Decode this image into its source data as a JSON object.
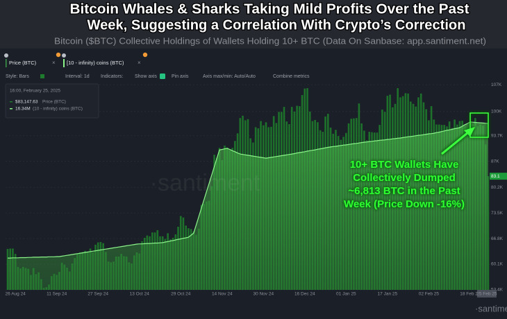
{
  "chart_data": {
    "type": "bar",
    "title": [
      "Bitcoin Whales & Sharks Taking Mild Profits Over the Past",
      "Week, Suggesting a Correlation With Crypto’s Correction"
    ],
    "subtitle": "Bitcoin ($BTC) Collective Holdings of Wallets Holding 10+ BTC (Data On Sanbase: app.santiment.net)",
    "toolbar": [
      "Style: Bars",
      "Interval: 1d",
      "Indicators:",
      "Show axis",
      "Pin axis",
      "Axis max/min: Auto/Auto",
      "Combine metrics"
    ],
    "tooltip": {
      "date": "16:00, February 25, 2025",
      "rows": [
        {
          "value": "$83,147.63",
          "name": "Price (BTC)"
        },
        {
          "value": "16.34M",
          "name": "(10 - infinity) coins (BTC)"
        }
      ]
    },
    "annotation": [
      "10+ BTC Wallets Have",
      "Collectively Dumped",
      "~6,813 BTC in the Past",
      "Week (Price Down -16%)"
    ],
    "watermark": "·santiment",
    "categories": [
      null,
      null,
      null,
      "26 Aug 24",
      null,
      null,
      null,
      null,
      null,
      null,
      null,
      null,
      null,
      null,
      null,
      null,
      null,
      null,
      null,
      "11 Sep 24",
      null,
      null,
      null,
      null,
      null,
      null,
      null,
      null,
      null,
      null,
      null,
      null,
      null,
      null,
      null,
      "27 Sep 24",
      null,
      null,
      null,
      null,
      null,
      null,
      null,
      null,
      null,
      null,
      null,
      null,
      null,
      null,
      null,
      "13 Oct 24",
      null,
      null,
      null,
      null,
      null,
      null,
      null,
      null,
      null,
      null,
      null,
      null,
      null,
      null,
      null,
      "29 Oct 24",
      null,
      null,
      null,
      null,
      null,
      null,
      null,
      null,
      null,
      null,
      null,
      null,
      null,
      null,
      null,
      "14 Nov 24",
      null,
      null,
      null,
      null,
      null,
      null,
      null,
      null,
      null,
      null,
      null,
      null,
      null,
      null,
      null,
      "30 Nov 24",
      null,
      null,
      null,
      null,
      null,
      null,
      null,
      null,
      null,
      null,
      null,
      null,
      null,
      null,
      null,
      "16 Dec 24",
      null,
      null,
      null,
      null,
      null,
      null,
      null,
      null,
      null,
      null,
      null,
      null,
      null,
      null,
      null,
      "01 Jan 25",
      null,
      null,
      null,
      null,
      null,
      null,
      null,
      null,
      null,
      null,
      null,
      null,
      null,
      null,
      null,
      "17 Jan 25",
      null,
      null,
      null,
      null,
      null,
      null,
      null,
      null,
      null,
      null,
      null,
      null,
      null,
      null,
      null,
      "02 Feb 25",
      null,
      null,
      null,
      null,
      null,
      null,
      null,
      null,
      null,
      null,
      null,
      null,
      null,
      null,
      null,
      "18 Feb 25",
      null,
      null,
      null,
      null,
      null,
      null,
      "25 Feb 25"
    ],
    "series": [
      {
        "name": "Price (BTC)",
        "color": "#1e7a2c",
        "values": [
          64.1,
          64.2,
          64.2,
          62.8,
          59.4,
          59.0,
          59.4,
          59.1,
          58.9,
          57.3,
          59.1,
          57.5,
          58.0,
          56.2,
          53.9,
          54.1,
          54.8,
          57.0,
          57.6,
          57.3,
          58.1,
          60.5,
          60.0,
          59.2,
          58.2,
          60.3,
          61.7,
          62.9,
          63.2,
          63.3,
          63.6,
          63.3,
          64.2,
          63.2,
          65.2,
          65.8,
          65.9,
          65.6,
          63.3,
          60.8,
          60.6,
          60.8,
          62.1,
          62.1,
          62.8,
          62.2,
          62.1,
          60.6,
          60.3,
          62.4,
          63.2,
          62.9,
          66.1,
          67.0,
          67.6,
          67.4,
          68.4,
          68.4,
          69.0,
          67.4,
          67.4,
          66.7,
          68.2,
          66.6,
          67.0,
          67.9,
          69.9,
          72.7,
          72.3,
          70.2,
          69.5,
          69.3,
          68.7,
          67.8,
          69.4,
          75.6,
          75.9,
          76.5,
          76.7,
          80.5,
          88.7,
          87.9,
          90.5,
          87.3,
          91.1,
          90.6,
          89.9,
          90.5,
          92.3,
          94.3,
          98.3,
          98.9,
          97.7,
          98.0,
          93.0,
          91.9,
          95.9,
          95.6,
          97.5,
          96.4,
          97.2,
          95.9,
          96.0,
          98.8,
          97.0,
          99.9,
          99.9,
          101.2,
          97.4,
          96.7,
          101.2,
          100.0,
          101.5,
          101.4,
          104.3,
          106.0,
          106.1,
          100.0,
          97.5,
          97.8,
          97.2,
          95.1,
          94.7,
          98.7,
          99.4,
          95.8,
          94.2,
          95.2,
          93.6,
          92.6,
          93.4,
          94.4,
          96.9,
          98.1,
          98.2,
          98.3,
          102.1,
          96.9,
          95.0,
          92.5,
          94.7,
          94.6,
          94.5,
          94.5,
          96.5,
          100.5,
          99.9,
          104.1,
          104.4,
          101.1,
          102.0,
          106.1,
          103.7,
          104.0,
          104.8,
          104.7,
          102.6,
          102.0,
          101.3,
          103.7,
          104.7,
          102.4,
          100.6,
          97.7,
          101.4,
          97.9,
          96.6,
          96.6,
          96.5,
          96.5,
          96.1,
          97.4,
          95.7,
          97.9,
          96.6,
          97.5,
          97.6,
          96.1,
          95.8,
          95.5,
          96.6,
          98.3,
          96.1,
          96.6,
          96.3,
          91.4,
          83.1
        ]
      },
      {
        "name": "[10 - infinity) coins (BTC)",
        "color": "#8cf58a",
        "axis": "y2",
        "values": [
          15.693,
          15.693,
          15.694,
          15.694,
          15.694,
          15.695,
          15.695,
          15.695,
          15.696,
          15.696,
          15.697,
          15.697,
          15.697,
          15.698,
          15.698,
          15.698,
          15.699,
          15.699,
          15.699,
          15.7,
          15.7,
          15.702,
          15.704,
          15.706,
          15.708,
          15.71,
          15.712,
          15.714,
          15.716,
          15.718,
          15.72,
          15.722,
          15.724,
          15.726,
          15.728,
          15.73,
          15.732,
          15.734,
          15.736,
          15.738,
          15.74,
          15.742,
          15.744,
          15.746,
          15.748,
          15.75,
          15.752,
          15.754,
          15.756,
          15.758,
          15.76,
          15.761,
          15.761,
          15.762,
          15.763,
          15.763,
          15.764,
          15.765,
          15.765,
          15.766,
          15.767,
          15.77,
          15.772,
          15.775,
          15.777,
          15.78,
          15.783,
          15.785,
          15.788,
          15.79,
          15.793,
          15.803,
          15.813,
          15.853,
          15.893,
          15.933,
          15.973,
          16.013,
          16.053,
          16.093,
          16.133,
          16.173,
          16.213,
          16.215,
          16.218,
          16.22,
          16.215,
          16.209,
          16.204,
          16.198,
          16.193,
          16.191,
          16.189,
          16.187,
          16.185,
          16.183,
          16.181,
          16.179,
          16.177,
          16.175,
          16.173,
          16.175,
          16.177,
          16.179,
          16.181,
          16.183,
          16.185,
          16.187,
          16.189,
          16.191,
          16.193,
          16.195,
          16.198,
          16.2,
          16.202,
          16.204,
          16.207,
          16.209,
          16.211,
          16.213,
          16.216,
          16.218,
          16.22,
          16.223,
          16.225,
          16.227,
          16.229,
          16.23,
          16.232,
          16.234,
          16.236,
          16.237,
          16.239,
          16.241,
          16.243,
          16.244,
          16.246,
          16.248,
          16.25,
          16.251,
          16.253,
          16.254,
          16.256,
          16.257,
          16.259,
          16.26,
          16.261,
          16.263,
          16.264,
          16.266,
          16.267,
          16.269,
          16.27,
          16.272,
          16.274,
          16.276,
          16.277,
          16.279,
          16.281,
          16.283,
          16.284,
          16.286,
          16.288,
          16.29,
          16.291,
          16.293,
          16.296,
          16.298,
          16.301,
          16.304,
          16.307,
          16.309,
          16.312,
          16.315,
          16.317,
          16.32,
          16.327,
          16.334,
          16.34,
          16.347,
          16.346,
          16.345,
          16.344,
          16.343,
          16.342,
          16.341,
          16.34
        ]
      }
    ],
    "ylim": [
      53.4,
      108.3
    ],
    "yticks": [
      {
        "value": 53.4,
        "label": "53.4K"
      },
      {
        "value": 60.1,
        "label": "60.1K"
      },
      {
        "value": 66.8,
        "label": "66.8K"
      },
      {
        "value": 73.5,
        "label": "73.5K"
      },
      {
        "value": 80.2,
        "label": "80.2K"
      },
      {
        "value": 87,
        "label": "87K"
      },
      {
        "value": 93.7,
        "label": "93.7K"
      },
      {
        "value": 100,
        "label": "100K"
      },
      {
        "value": 107,
        "label": "107K"
      }
    ],
    "y2lim": [
      15.54,
      16.55
    ],
    "price_marker": 83.1,
    "grid": true
  }
}
